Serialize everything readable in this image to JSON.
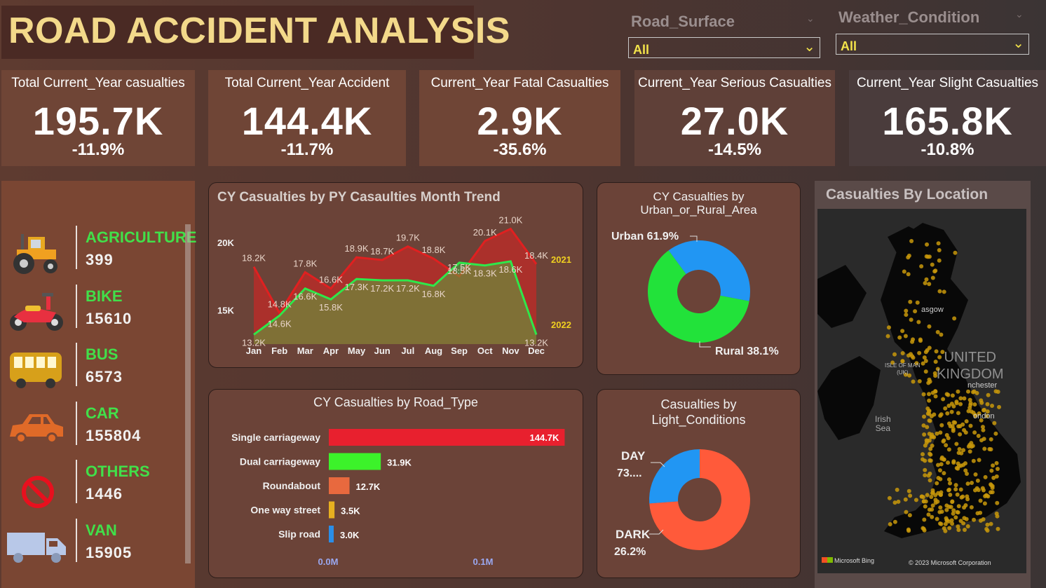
{
  "header": {
    "title": "ROAD ACCIDENT ANALYSIS"
  },
  "slicers": {
    "road_surface": {
      "label": "Road_Surface",
      "value": "All"
    },
    "weather": {
      "label": "Weather_Condition",
      "value": "All"
    }
  },
  "kpis": [
    {
      "label": "Total Current_Year casualties",
      "value": "195.7K",
      "change": "-11.9%"
    },
    {
      "label": "Total Current_Year Accident",
      "value": "144.4K",
      "change": "-11.7%"
    },
    {
      "label": "Current_Year Fatal Casualties",
      "value": "2.9K",
      "change": "-35.6%"
    },
    {
      "label": "Current_Year Serious Casualties",
      "value": "27.0K",
      "change": "-14.5%"
    },
    {
      "label": "Current_Year Slight Casualties",
      "value": "165.8K",
      "change": "-10.8%"
    }
  ],
  "vehicles": [
    {
      "name": "AGRICULTURE",
      "count": "399",
      "icon": "tractor-icon"
    },
    {
      "name": "BIKE",
      "count": "15610",
      "icon": "motorbike-icon"
    },
    {
      "name": "BUS",
      "count": "6573",
      "icon": "bus-icon"
    },
    {
      "name": "CAR",
      "count": "155804",
      "icon": "car-icon"
    },
    {
      "name": "OTHERS",
      "count": "1446",
      "icon": "no-entry-icon"
    },
    {
      "name": "VAN",
      "count": "15905",
      "icon": "van-icon"
    }
  ],
  "trend": {
    "title": "CY Casualties by PY Casaulties Month Trend"
  },
  "urban": {
    "title_line1": "CY Casualties by",
    "title_line2": "Urban_or_Rural_Area"
  },
  "light": {
    "title_line1": "Casualties by",
    "title_line2": "Light_Conditions"
  },
  "road_type": {
    "title": "CY Casualties by Road_Type"
  },
  "map": {
    "title": "Casualties By Location",
    "labels": [
      "UNITED",
      "KINGDOM",
      "Irish",
      "Sea",
      "ISLE OF MAN",
      "(UK)",
      "asgow",
      "nchester",
      "ondon"
    ],
    "brand": "Microsoft Bing",
    "copyright": "© 2023 Microsoft Corporation"
  },
  "chart_data": [
    {
      "type": "area",
      "title": "CY Casualties by PY Casaulties Month Trend",
      "categories": [
        "Jan",
        "Feb",
        "Mar",
        "Apr",
        "May",
        "Jun",
        "Jul",
        "Aug",
        "Sep",
        "Oct",
        "Nov",
        "Dec"
      ],
      "y_ticks": [
        "15K",
        "20K"
      ],
      "ylim": [
        12500,
        21800
      ],
      "series": [
        {
          "name": "2021",
          "color": "#e02020",
          "values": [
            18200,
            14800,
            17800,
            16600,
            18900,
            18700,
            19700,
            18800,
            17500,
            20100,
            21000,
            18400
          ],
          "labels": [
            "18.2K",
            "14.8K",
            "17.8K",
            "16.6K",
            "18.9K",
            "18.7K",
            "19.7K",
            "18.8K",
            "17.5K",
            "20.1K",
            "21.0K",
            "18.4K"
          ]
        },
        {
          "name": "2022",
          "color": "#2ee84a",
          "values": [
            13200,
            14600,
            16600,
            15800,
            17300,
            17200,
            17200,
            16800,
            18500,
            18300,
            18600,
            13200
          ],
          "labels": [
            "13.2K",
            "14.6K",
            "16.6K",
            "15.8K",
            "17.3K",
            "17.2K",
            "17.2K",
            "16.8K",
            "18.5K",
            "18.3K",
            "18.6K",
            "13.2K"
          ]
        }
      ]
    },
    {
      "type": "pie",
      "title": "CY Casualties by Urban_or_Rural_Area",
      "slices": [
        {
          "name": "Urban",
          "value": 61.9,
          "label": "61.9%",
          "color": "#22e23a"
        },
        {
          "name": "Rural",
          "value": 38.1,
          "label": "38.1%",
          "color": "#2196f3"
        }
      ]
    },
    {
      "type": "bar",
      "title": "CY Casualties by Road_Type",
      "categories": [
        "Single carriageway",
        "Dual carriageway",
        "Roundabout",
        "One way street",
        "Slip road"
      ],
      "values": [
        144.7,
        31.9,
        12.7,
        3.5,
        3.0
      ],
      "labels": [
        "144.7K",
        "31.9K",
        "12.7K",
        "3.5K",
        "3.0K"
      ],
      "colors": [
        "#e8202e",
        "#3cf22a",
        "#e8693e",
        "#e8b020",
        "#2a8ee8"
      ],
      "x_ticks": [
        "0.0M",
        "0.1M"
      ],
      "xlim": [
        0,
        160
      ]
    },
    {
      "type": "pie",
      "title": "Casualties by Light_Conditions",
      "slices": [
        {
          "name": "DAY",
          "value": 73.8,
          "label": "73....",
          "color": "#ff5a3a"
        },
        {
          "name": "DARK",
          "value": 26.2,
          "label": "26.2%",
          "color": "#2196f3"
        }
      ]
    }
  ]
}
